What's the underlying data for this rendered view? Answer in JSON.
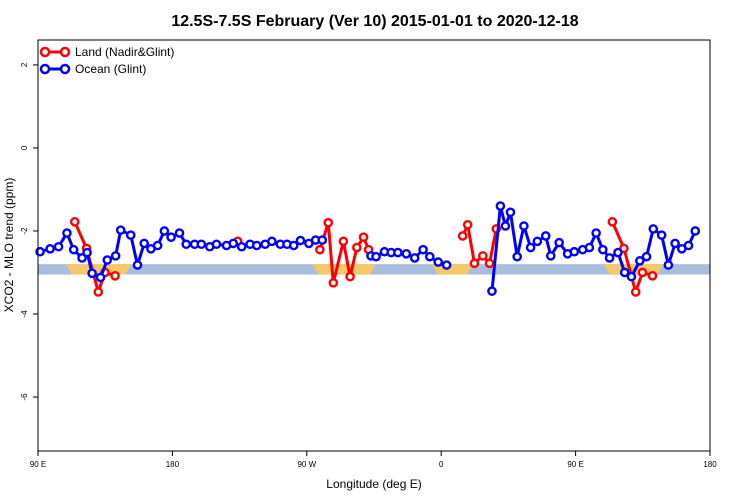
{
  "chart_data": {
    "type": "line",
    "title": "12.5S-7.5S February (Ver 10)   2015-01-01 to 2020-12-18",
    "xlabel": "Longitude (deg E)",
    "ylabel": "XCO2 - MLO trend (ppm)",
    "xlim": [
      90,
      450
    ],
    "ylim": [
      -7.3,
      2.6
    ],
    "x_ticks": [
      {
        "value": 90,
        "label": "90 E"
      },
      {
        "value": 162,
        "label": "180"
      },
      {
        "value": 234,
        "label": "90 W"
      },
      {
        "value": 306,
        "label": "0"
      },
      {
        "value": 378,
        "label": "90 E"
      },
      {
        "value": 450,
        "label": "180"
      }
    ],
    "y_ticks": [
      {
        "value": 2,
        "label": "2"
      },
      {
        "value": 0,
        "label": "0"
      },
      {
        "value": -2,
        "label": "-2"
      },
      {
        "value": -4,
        "label": "-4"
      },
      {
        "value": -6,
        "label": "-6"
      }
    ],
    "band": {
      "y_min": -3.05,
      "y_max": -2.8,
      "color": "#a9bedd"
    },
    "land_patches": [
      {
        "x_min": 105,
        "x_max": 140,
        "color": "#f5c96a"
      },
      {
        "x_min": 237,
        "x_max": 271,
        "color": "#f5c96a"
      },
      {
        "x_min": 301,
        "x_max": 323,
        "color": "#f5c96a"
      },
      {
        "x_min": 393,
        "x_max": 425,
        "color": "#f5c96a"
      }
    ],
    "legend": {
      "position": "top-left"
    },
    "series": [
      {
        "name": "Land (Nadir&Glint)",
        "color": "#ff0000",
        "points": [
          [
            109.7,
            -1.78
          ],
          [
            116.0,
            -2.42
          ],
          [
            122.3,
            -3.47
          ],
          [
            125.9,
            -3.0
          ],
          [
            131.3,
            -3.08
          ],
          [
            197.0,
            -2.25
          ],
          [
            241.0,
            -2.45
          ],
          [
            245.5,
            -1.8
          ],
          [
            248.2,
            -3.25
          ],
          [
            253.6,
            -2.25
          ],
          [
            257.2,
            -3.1
          ],
          [
            260.8,
            -2.4
          ],
          [
            264.4,
            -2.15
          ],
          [
            267.1,
            -2.45
          ],
          [
            317.5,
            -2.12
          ],
          [
            320.2,
            -1.85
          ],
          [
            323.8,
            -2.78
          ],
          [
            328.3,
            -2.6
          ],
          [
            331.9,
            -2.78
          ],
          [
            335.5,
            -1.95
          ],
          [
            397.7,
            -1.78
          ],
          [
            403.9,
            -2.42
          ],
          [
            410.2,
            -3.47
          ],
          [
            413.8,
            -3.0
          ],
          [
            419.2,
            -3.08
          ]
        ]
      },
      {
        "name": "Ocean (Glint)",
        "color": "#0000ff",
        "points": [
          [
            91.1,
            -2.5
          ],
          [
            96.5,
            -2.43
          ],
          [
            101.0,
            -2.38
          ],
          [
            105.5,
            -2.05
          ],
          [
            109.1,
            -2.45
          ],
          [
            113.6,
            -2.65
          ],
          [
            116.3,
            -2.52
          ],
          [
            119.0,
            -3.02
          ],
          [
            123.5,
            -3.12
          ],
          [
            127.1,
            -2.7
          ],
          [
            131.6,
            -2.6
          ],
          [
            134.3,
            -1.98
          ],
          [
            139.7,
            -2.1
          ],
          [
            143.3,
            -2.82
          ],
          [
            146.9,
            -2.3
          ],
          [
            150.5,
            -2.43
          ],
          [
            154.1,
            -2.35
          ],
          [
            157.7,
            -2.0
          ],
          [
            161.3,
            -2.15
          ],
          [
            165.8,
            -2.05
          ],
          [
            169.4,
            -2.32
          ],
          [
            173.9,
            -2.32
          ],
          [
            177.5,
            -2.32
          ],
          [
            182.0,
            -2.38
          ],
          [
            185.6,
            -2.32
          ],
          [
            191.0,
            -2.35
          ],
          [
            194.6,
            -2.3
          ],
          [
            199.1,
            -2.38
          ],
          [
            203.6,
            -2.32
          ],
          [
            207.2,
            -2.35
          ],
          [
            211.7,
            -2.32
          ],
          [
            215.3,
            -2.25
          ],
          [
            219.8,
            -2.32
          ],
          [
            223.4,
            -2.32
          ],
          [
            227.0,
            -2.35
          ],
          [
            230.6,
            -2.23
          ],
          [
            235.1,
            -2.3
          ],
          [
            238.7,
            -2.22
          ],
          [
            242.3,
            -2.22
          ],
          [
            268.4,
            -2.6
          ],
          [
            271.1,
            -2.62
          ],
          [
            275.6,
            -2.5
          ],
          [
            279.2,
            -2.52
          ],
          [
            282.8,
            -2.52
          ],
          [
            287.3,
            -2.55
          ],
          [
            291.8,
            -2.65
          ],
          [
            296.3,
            -2.45
          ],
          [
            299.9,
            -2.62
          ],
          [
            304.4,
            -2.75
          ],
          [
            308.9,
            -2.82
          ],
          [
            333.2,
            -3.45
          ],
          [
            337.7,
            -1.4
          ],
          [
            340.4,
            -1.88
          ],
          [
            343.1,
            -1.55
          ],
          [
            346.7,
            -2.62
          ],
          [
            350.3,
            -1.88
          ],
          [
            353.9,
            -2.4
          ],
          [
            357.5,
            -2.25
          ],
          [
            362.0,
            -2.12
          ],
          [
            364.7,
            -2.6
          ],
          [
            369.2,
            -2.28
          ],
          [
            373.7,
            -2.55
          ],
          [
            377.3,
            -2.5
          ],
          [
            381.8,
            -2.45
          ],
          [
            385.4,
            -2.4
          ],
          [
            389.0,
            -2.05
          ],
          [
            392.6,
            -2.45
          ],
          [
            396.2,
            -2.65
          ],
          [
            400.7,
            -2.52
          ],
          [
            404.3,
            -3.0
          ],
          [
            407.9,
            -3.1
          ],
          [
            412.4,
            -2.72
          ],
          [
            416.0,
            -2.62
          ],
          [
            419.6,
            -1.95
          ],
          [
            424.1,
            -2.1
          ],
          [
            427.7,
            -2.82
          ],
          [
            431.3,
            -2.3
          ],
          [
            434.9,
            -2.43
          ],
          [
            438.5,
            -2.35
          ],
          [
            442.1,
            -2.0
          ]
        ]
      }
    ]
  }
}
